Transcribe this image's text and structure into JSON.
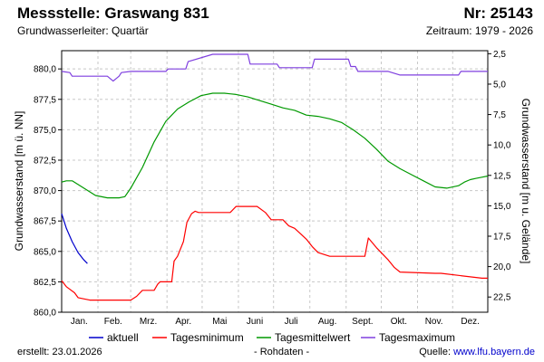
{
  "header": {
    "title": "Messstelle: Graswang 831",
    "number": "Nr: 25143",
    "aquifer": "Grundwasserleiter: Quartär",
    "period": "Zeitraum: 1979 - 2026"
  },
  "footer": {
    "created_label": "erstellt:",
    "created_date": "23.01.2026",
    "raw_data": "- Rohdaten -",
    "source_label": "Quelle:",
    "source_link": "www.lfu.bayern.de"
  },
  "colors": {
    "aktuell": "#0000cc",
    "min": "#ff0000",
    "mean": "#009900",
    "max": "#7f3fdf",
    "grid": "#c8c8c8"
  },
  "chart_data": {
    "type": "line",
    "xlabel": "",
    "ylabel": "Grundwasserstand [m ü. NN]",
    "ylabel_right": "Grundwasserstand [m u. Gelände]",
    "x_unit": "day of year",
    "xlim": [
      1,
      365
    ],
    "ylim": [
      860.0,
      881.5
    ],
    "yticks": [
      "880,0",
      "877,5",
      "875,0",
      "872,5",
      "870,0",
      "867,5",
      "865,0",
      "862,5",
      "860,0"
    ],
    "ytick_values": [
      880.0,
      877.5,
      875.0,
      872.5,
      870.0,
      867.5,
      865.0,
      862.5,
      860.0
    ],
    "yticks_right": [
      "2,5",
      "5,0",
      "7,5",
      "10,0",
      "12,5",
      "15,0",
      "17,5",
      "20,0",
      "22,5"
    ],
    "yticks_right_levels": [
      881.25,
      878.75,
      876.25,
      873.75,
      871.25,
      868.75,
      866.25,
      863.75,
      861.25
    ],
    "months": [
      "Jan.",
      "Feb.",
      "Mrz.",
      "Apr.",
      "Mai",
      "Juni",
      "Juli",
      "Aug.",
      "Sept.",
      "Okt.",
      "Nov.",
      "Dez."
    ],
    "month_centers": [
      16,
      45,
      75,
      105,
      136,
      166,
      197,
      228,
      258,
      289,
      319,
      350
    ],
    "grid": true,
    "legend_position": "bottom",
    "series": [
      {
        "name": "aktuell",
        "x": [
          1,
          5,
          10,
          15,
          20,
          23
        ],
        "y": [
          868.1,
          866.9,
          865.8,
          864.9,
          864.3,
          864.0
        ]
      },
      {
        "name": "Tagesminimum",
        "x": [
          1,
          5,
          12,
          15,
          25,
          30,
          60,
          65,
          70,
          80,
          83,
          85,
          95,
          97,
          100,
          105,
          108,
          112,
          115,
          118,
          125,
          145,
          150,
          168,
          175,
          180,
          190,
          195,
          200,
          210,
          215,
          220,
          230,
          240,
          260,
          263,
          270,
          280,
          285,
          290,
          320,
          325,
          360,
          365
        ],
        "y": [
          862.6,
          862.1,
          861.6,
          861.2,
          861.0,
          861.0,
          861.0,
          861.3,
          861.8,
          861.8,
          862.3,
          862.5,
          862.5,
          864.2,
          864.6,
          865.8,
          867.4,
          868.1,
          868.3,
          868.2,
          868.2,
          868.2,
          868.7,
          868.7,
          868.2,
          867.6,
          867.6,
          867.1,
          866.9,
          866.0,
          865.4,
          864.9,
          864.6,
          864.6,
          864.6,
          866.1,
          865.3,
          864.3,
          863.7,
          863.3,
          863.2,
          863.2,
          862.8,
          862.8
        ]
      },
      {
        "name": "Tagesmittelwert",
        "x": [
          1,
          5,
          10,
          20,
          30,
          40,
          50,
          55,
          60,
          70,
          80,
          90,
          100,
          110,
          120,
          130,
          140,
          150,
          160,
          170,
          180,
          190,
          200,
          210,
          220,
          230,
          240,
          250,
          260,
          270,
          280,
          290,
          300,
          310,
          320,
          330,
          340,
          345,
          350,
          355,
          360,
          365
        ],
        "y": [
          870.7,
          870.8,
          870.8,
          870.2,
          869.6,
          869.4,
          869.4,
          869.5,
          870.2,
          871.9,
          874.0,
          875.7,
          876.7,
          877.3,
          877.8,
          878.0,
          878.0,
          877.9,
          877.7,
          877.4,
          877.1,
          876.8,
          876.6,
          876.2,
          876.1,
          875.9,
          875.6,
          875.0,
          874.3,
          873.4,
          872.4,
          871.8,
          871.3,
          870.8,
          870.3,
          870.2,
          870.4,
          870.7,
          870.9,
          871.0,
          871.1,
          871.2
        ]
      },
      {
        "name": "Tagesmaximum",
        "x": [
          1,
          8,
          10,
          40,
          45,
          50,
          52,
          60,
          90,
          92,
          107,
          109,
          130,
          132,
          135,
          160,
          162,
          185,
          187,
          215,
          217,
          220,
          246,
          248,
          252,
          254,
          260,
          280,
          290,
          292,
          300,
          320,
          330,
          340,
          342,
          365
        ],
        "y": [
          879.8,
          879.7,
          879.4,
          879.4,
          879.0,
          879.4,
          879.7,
          879.8,
          879.8,
          880.0,
          880.0,
          880.6,
          881.2,
          881.2,
          881.2,
          881.2,
          880.4,
          880.4,
          880.1,
          880.1,
          880.8,
          880.8,
          880.8,
          880.2,
          880.2,
          879.8,
          879.8,
          879.8,
          879.5,
          879.5,
          879.5,
          879.5,
          879.5,
          879.5,
          879.8,
          879.8
        ]
      }
    ]
  }
}
